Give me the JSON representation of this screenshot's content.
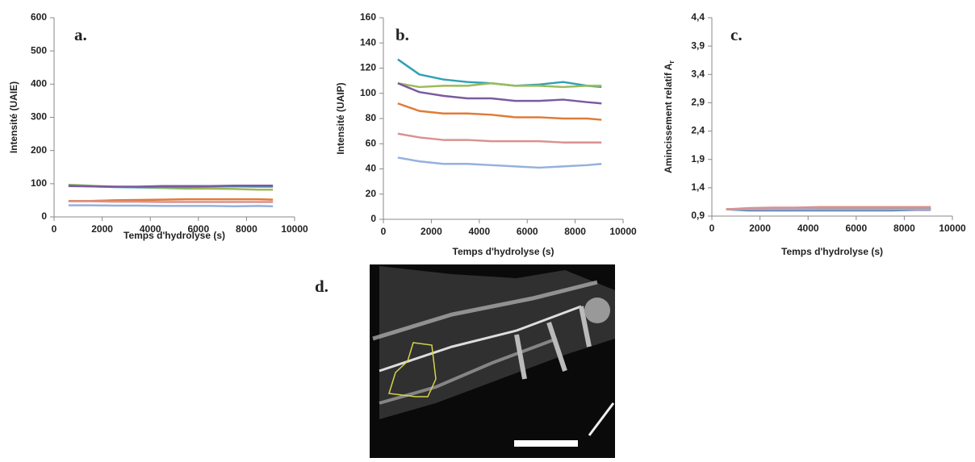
{
  "charts": [
    {
      "chart_data": {
        "type": "line",
        "panel": "a.",
        "xlabel": "Temps d'hydrolyse (s)",
        "ylabel": "Intensité (UAIE)",
        "x": [
          600,
          1500,
          2500,
          3500,
          4500,
          5500,
          6500,
          7500,
          8500,
          9100
        ],
        "xlim": [
          0,
          10000
        ],
        "xticks": [
          0,
          2000,
          4000,
          6000,
          8000,
          10000
        ],
        "ylim": [
          0,
          600
        ],
        "yticks": [
          0,
          100,
          200,
          300,
          400,
          500,
          600
        ],
        "series": [
          {
            "color": "#9bbb59",
            "values": [
              97,
              94,
              91,
              89,
              87,
              85,
              85,
              84,
              82,
              82
            ]
          },
          {
            "color": "#31a0b5",
            "values": [
              94,
              92,
              90,
              89,
              90,
              90,
              91,
              92,
              91,
              91
            ]
          },
          {
            "color": "#7a5b9e",
            "values": [
              93,
              92,
              91,
              91,
              93,
              93,
              93,
              94,
              94,
              94
            ]
          },
          {
            "color": "#e07b39",
            "values": [
              48,
              48,
              50,
              51,
              52,
              53,
              53,
              53,
              53,
              52
            ]
          },
          {
            "color": "#d9928f",
            "values": [
              47,
              47,
              46,
              46,
              45,
              45,
              45,
              45,
              45,
              45
            ]
          },
          {
            "color": "#95b0dc",
            "values": [
              35,
              35,
              34,
              34,
              33,
              33,
              33,
              32,
              33,
              32
            ]
          }
        ]
      }
    },
    {
      "chart_data": {
        "type": "line",
        "panel": "b.",
        "xlabel": "Temps d'hydrolyse (s)",
        "ylabel": "Intensité (UAIP)",
        "x": [
          600,
          1500,
          2500,
          3500,
          4500,
          5500,
          6500,
          7500,
          8500,
          9100
        ],
        "xlim": [
          0,
          10000
        ],
        "xticks": [
          0,
          2000,
          4000,
          6000,
          8000,
          10000
        ],
        "ylim": [
          0,
          160
        ],
        "yticks": [
          0,
          20,
          40,
          60,
          80,
          100,
          120,
          140,
          160
        ],
        "series": [
          {
            "color": "#31a0b5",
            "values": [
              127,
              115,
              111,
              109,
              108,
              106,
              107,
              109,
              106,
              105
            ]
          },
          {
            "color": "#9bbb59",
            "values": [
              108,
              105,
              106,
              106,
              108,
              106,
              106,
              105,
              106,
              106
            ]
          },
          {
            "color": "#7a5b9e",
            "values": [
              108,
              101,
              98,
              96,
              96,
              94,
              94,
              95,
              93,
              92
            ]
          },
          {
            "color": "#e07b39",
            "values": [
              92,
              86,
              84,
              84,
              83,
              81,
              81,
              80,
              80,
              79
            ]
          },
          {
            "color": "#d9928f",
            "values": [
              68,
              65,
              63,
              63,
              62,
              62,
              62,
              61,
              61,
              61
            ]
          },
          {
            "color": "#95b0dc",
            "values": [
              49,
              46,
              44,
              44,
              43,
              42,
              41,
              42,
              43,
              44
            ]
          }
        ]
      }
    },
    {
      "chart_data": {
        "type": "line",
        "panel": "c.",
        "xlabel": "Temps d'hydrolyse (s)",
        "ylabel": "Amincissement relatif A",
        "ylabel_sub": "r",
        "x": [
          600,
          1500,
          2500,
          3500,
          4500,
          5500,
          6500,
          7500,
          8500,
          9100
        ],
        "xlim": [
          0,
          10000
        ],
        "xticks": [
          0,
          2000,
          4000,
          6000,
          8000,
          10000
        ],
        "ylim": [
          0.9,
          4.4
        ],
        "yticks": [
          {
            "value": 0.9,
            "label": "0,9"
          },
          {
            "value": 1.4,
            "label": "1,4"
          },
          {
            "value": 1.9,
            "label": "1,9"
          },
          {
            "value": 2.4,
            "label": "2,4"
          },
          {
            "value": 2.9,
            "label": "2,9"
          },
          {
            "value": 3.4,
            "label": "3,4"
          },
          {
            "value": 3.9,
            "label": "3,9"
          },
          {
            "value": 4.4,
            "label": "4,4"
          }
        ],
        "series": [
          {
            "color": "#31a0b5",
            "values": [
              1.02,
              1.0,
              1.0,
              1.0,
              1.0,
              1.0,
              1.0,
              1.0,
              1.01,
              1.03
            ]
          },
          {
            "color": "#9bbb59",
            "values": [
              1.02,
              1.03,
              1.03,
              1.03,
              1.03,
              1.03,
              1.03,
              1.03,
              1.03,
              1.03
            ]
          },
          {
            "color": "#7a5b9e",
            "values": [
              1.02,
              1.01,
              1.01,
              1.01,
              1.01,
              1.01,
              1.01,
              1.01,
              1.01,
              1.01
            ]
          },
          {
            "color": "#e07b39",
            "values": [
              1.02,
              1.03,
              1.04,
              1.04,
              1.04,
              1.04,
              1.04,
              1.04,
              1.04,
              1.04
            ]
          },
          {
            "color": "#95b0dc",
            "values": [
              1.02,
              1.02,
              1.02,
              1.02,
              1.02,
              1.02,
              1.02,
              1.02,
              1.02,
              1.02
            ]
          },
          {
            "color": "#d9928f",
            "values": [
              1.02,
              1.04,
              1.05,
              1.05,
              1.06,
              1.06,
              1.06,
              1.06,
              1.06,
              1.06
            ]
          }
        ]
      }
    }
  ],
  "image": {
    "panel": "d."
  }
}
